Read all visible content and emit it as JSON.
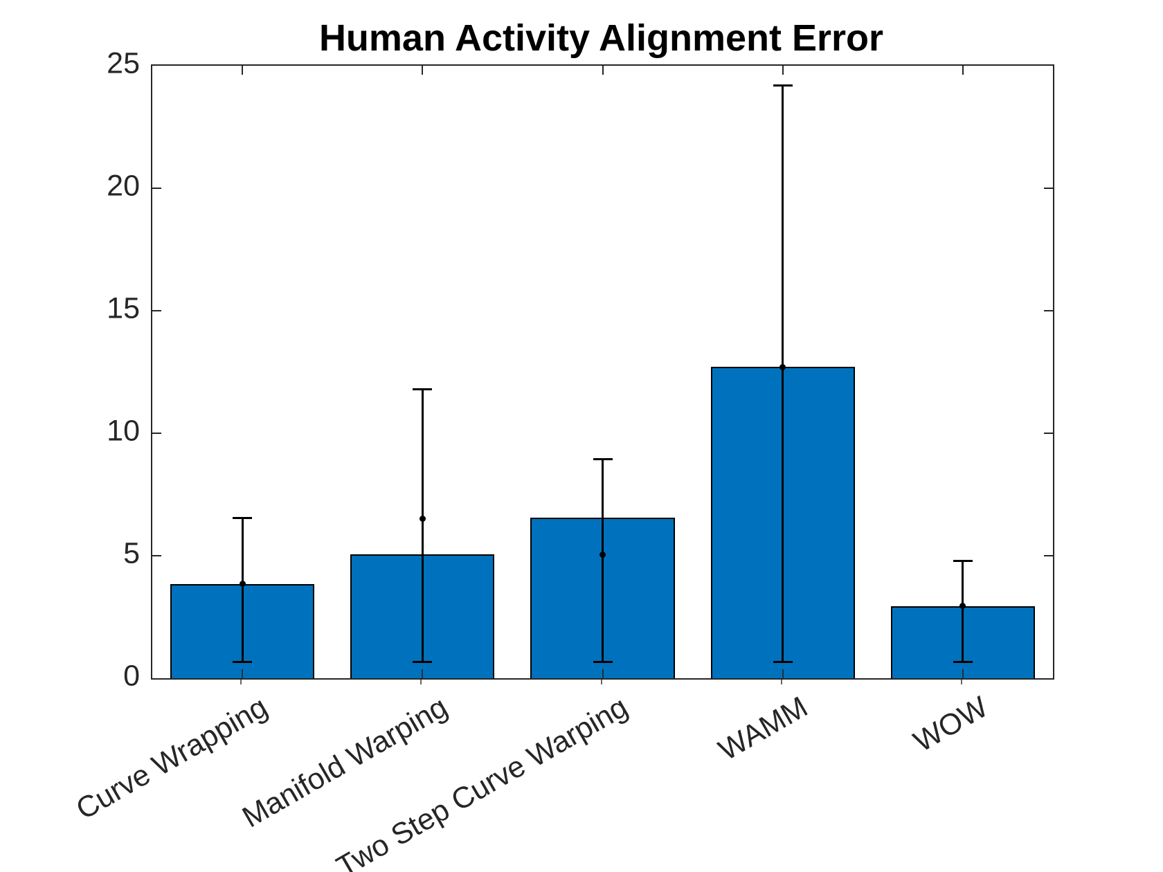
{
  "title": "Human Activity Alignment Error",
  "colors": {
    "bar_fill": "#0072BD",
    "bar_edge": "#000000",
    "axis": "#262626",
    "tick_label": "#262626",
    "error_bar": "#000000",
    "marker": "#000000",
    "background": "#FFFFFF",
    "title_text": "#000000"
  },
  "chart_data": {
    "type": "bar",
    "title": "Human Activity Alignment Error",
    "categories": [
      "Curve Wrapping",
      "Manifold Warping",
      "Two Step Curve Warping",
      "WAMM",
      "WOW"
    ],
    "series": [
      {
        "name": "bar-height",
        "values": [
          3.85,
          5.05,
          6.55,
          12.7,
          2.95
        ]
      },
      {
        "name": "point-marker",
        "values": [
          3.85,
          6.5,
          5.05,
          12.7,
          2.95
        ]
      }
    ],
    "error_bars": {
      "upper_end": [
        6.55,
        11.8,
        8.95,
        24.2,
        4.8
      ],
      "lower_end": [
        0.65,
        0.65,
        0.65,
        0.65,
        0.65
      ]
    },
    "xlabel": "",
    "ylabel": "",
    "ylim": [
      0,
      25
    ],
    "y_tick_labels": [
      "0",
      "5",
      "10",
      "15",
      "20",
      "25"
    ],
    "y_tick_values": [
      0,
      5,
      10,
      15,
      20,
      25
    ],
    "grid": false,
    "legend": "none",
    "box": true,
    "bar_width_fraction": 0.8,
    "x_tick_label_rotation_deg": 30
  }
}
